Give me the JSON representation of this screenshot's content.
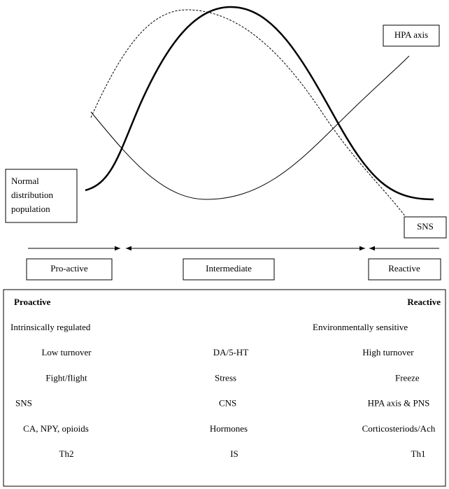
{
  "labels": {
    "hpa_axis": "HPA axis",
    "normal_distribution": [
      "Normal",
      "distribution",
      "population"
    ],
    "sns": "SNS",
    "pro_active": "Pro-active",
    "intermediate": "Intermediate",
    "reactive": "Reactive"
  },
  "table": {
    "header": {
      "left": "Proactive",
      "right": "Reactive"
    },
    "rows": [
      {
        "left": "Intrinsically regulated",
        "right": "Environmentally sensitive"
      },
      {
        "left": "Low turnover",
        "middle": "DA/5-HT",
        "right": "High turnover"
      },
      {
        "left": "Fight/flight",
        "middle": "Stress",
        "right": "Freeze"
      },
      {
        "left": "SNS",
        "middle": "CNS",
        "right": "HPA axis & PNS"
      },
      {
        "left": "CA, NPY, opioids",
        "middle": "Hormones",
        "right": "Corticosteriods/Ach"
      },
      {
        "left": "Th2",
        "middle": "IS",
        "right": "Th1"
      }
    ]
  }
}
